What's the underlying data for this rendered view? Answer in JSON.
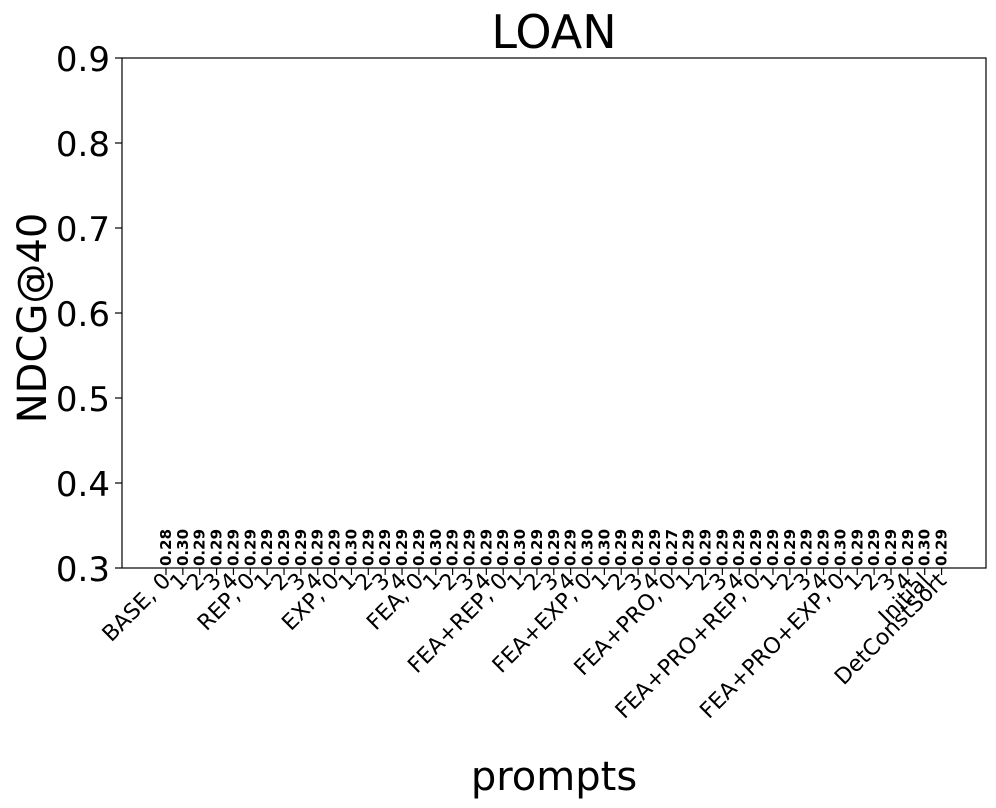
{
  "chart_data": {
    "type": "bar",
    "title": "LOAN",
    "xlabel": "prompts",
    "ylabel": "NDCG@40",
    "ylim": [
      0.3,
      0.9
    ],
    "yticks": [
      "0.3",
      "0.4",
      "0.5",
      "0.6",
      "0.7",
      "0.8",
      "0.9"
    ],
    "grid": false,
    "categories": [
      "BASE, 0",
      "1",
      "2",
      "3",
      "4",
      "REP, 0",
      "1",
      "2",
      "3",
      "4",
      "EXP, 0",
      "1",
      "2",
      "3",
      "4",
      "FEA, 0",
      "1",
      "2",
      "3",
      "4",
      "FEA+REP, 0",
      "1",
      "2",
      "3",
      "4",
      "FEA+EXP, 0",
      "1",
      "2",
      "3",
      "4",
      "FEA+PRO, 0",
      "1",
      "2",
      "3",
      "4",
      "FEA+PRO+REP, 0",
      "1",
      "2",
      "3",
      "4",
      "FEA+PRO+EXP, 0",
      "1",
      "2",
      "3",
      "4",
      "Initial",
      "DetConstSort"
    ],
    "values": [
      0.28,
      0.3,
      0.29,
      0.29,
      0.29,
      0.29,
      0.29,
      0.29,
      0.29,
      0.29,
      0.29,
      0.3,
      0.29,
      0.29,
      0.29,
      0.29,
      0.3,
      0.29,
      0.29,
      0.29,
      0.29,
      0.3,
      0.29,
      0.29,
      0.29,
      0.3,
      0.3,
      0.29,
      0.29,
      0.29,
      0.27,
      0.29,
      0.29,
      0.29,
      0.29,
      0.29,
      0.29,
      0.29,
      0.29,
      0.29,
      0.3,
      0.29,
      0.29,
      0.29,
      0.29,
      0.3,
      0.29
    ],
    "data_labels": [
      "0.28",
      "0.30",
      "0.29",
      "0.29",
      "0.29",
      "0.29",
      "0.29",
      "0.29",
      "0.29",
      "0.29",
      "0.29",
      "0.30",
      "0.29",
      "0.29",
      "0.29",
      "0.29",
      "0.30",
      "0.29",
      "0.29",
      "0.29",
      "0.29",
      "0.30",
      "0.29",
      "0.29",
      "0.29",
      "0.30",
      "0.30",
      "0.29",
      "0.29",
      "0.29",
      "0.27",
      "0.29",
      "0.29",
      "0.29",
      "0.29",
      "0.29",
      "0.29",
      "0.29",
      "0.29",
      "0.29",
      "0.30",
      "0.29",
      "0.29",
      "0.29",
      "0.29",
      "0.30",
      "0.29"
    ]
  }
}
